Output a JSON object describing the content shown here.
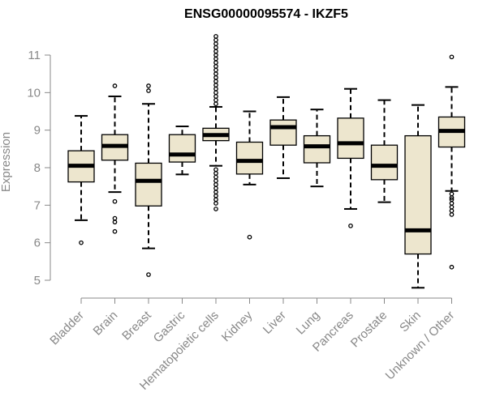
{
  "chart_data": {
    "type": "boxplot",
    "title": "ENSG00000095574 - IKZF5",
    "xlabel": "",
    "ylabel": "Expression",
    "ylim": [
      4.7,
      11.55
    ],
    "yticks": [
      5,
      6,
      7,
      8,
      9,
      10,
      11
    ],
    "colors": {
      "box_fill": "#EDE6CE",
      "stroke": "#000000",
      "axis": "#888888"
    },
    "categories": [
      "Bladder",
      "Brain",
      "Breast",
      "Gastric",
      "Hematopoietic cells",
      "Kidney",
      "Liver",
      "Lung",
      "Pancreas",
      "Prostate",
      "Skin",
      "Unknown / Other"
    ],
    "boxes": [
      {
        "name": "Bladder",
        "min": 6.6,
        "q1": 7.62,
        "median": 8.05,
        "q3": 8.45,
        "max": 9.38,
        "outliers": [
          6.0
        ]
      },
      {
        "name": "Brain",
        "min": 7.35,
        "q1": 8.2,
        "median": 8.58,
        "q3": 8.88,
        "max": 9.9,
        "outliers": [
          10.18,
          7.1,
          6.65,
          6.55,
          6.3
        ]
      },
      {
        "name": "Breast",
        "min": 5.85,
        "q1": 6.98,
        "median": 7.65,
        "q3": 8.12,
        "max": 9.7,
        "outliers": [
          10.18,
          10.05,
          5.15
        ]
      },
      {
        "name": "Gastric",
        "min": 7.82,
        "q1": 8.15,
        "median": 8.35,
        "q3": 8.88,
        "max": 9.1,
        "outliers": []
      },
      {
        "name": "Hematopoietic cells",
        "min": 8.05,
        "q1": 8.72,
        "median": 8.87,
        "q3": 9.05,
        "max": 9.62,
        "outliers": [
          11.5,
          11.4,
          11.3,
          11.2,
          11.1,
          11.0,
          10.9,
          10.8,
          10.7,
          10.6,
          10.5,
          10.4,
          10.3,
          10.2,
          10.1,
          10.0,
          9.9,
          9.8,
          9.7,
          7.95,
          7.85,
          7.75,
          7.65,
          7.55,
          7.45,
          7.35,
          7.25,
          7.15,
          7.05,
          6.9
        ]
      },
      {
        "name": "Kidney",
        "min": 7.55,
        "q1": 7.83,
        "median": 8.18,
        "q3": 8.68,
        "max": 9.5,
        "outliers": [
          6.15
        ]
      },
      {
        "name": "Liver",
        "min": 7.72,
        "q1": 8.6,
        "median": 9.08,
        "q3": 9.27,
        "max": 9.88,
        "outliers": []
      },
      {
        "name": "Lung",
        "min": 7.5,
        "q1": 8.13,
        "median": 8.57,
        "q3": 8.85,
        "max": 9.55,
        "outliers": []
      },
      {
        "name": "Pancreas",
        "min": 6.9,
        "q1": 8.25,
        "median": 8.65,
        "q3": 9.32,
        "max": 10.1,
        "outliers": [
          6.45
        ]
      },
      {
        "name": "Prostate",
        "min": 7.08,
        "q1": 7.68,
        "median": 8.05,
        "q3": 8.6,
        "max": 9.8,
        "outliers": []
      },
      {
        "name": "Skin",
        "min": 4.8,
        "q1": 5.7,
        "median": 6.33,
        "q3": 8.85,
        "max": 9.67,
        "outliers": []
      },
      {
        "name": "Unknown / Other",
        "min": 7.38,
        "q1": 8.55,
        "median": 8.98,
        "q3": 9.35,
        "max": 10.15,
        "outliers": [
          10.95,
          7.3,
          7.2,
          7.15,
          7.05,
          6.95,
          6.85,
          6.75,
          5.35
        ]
      }
    ]
  }
}
